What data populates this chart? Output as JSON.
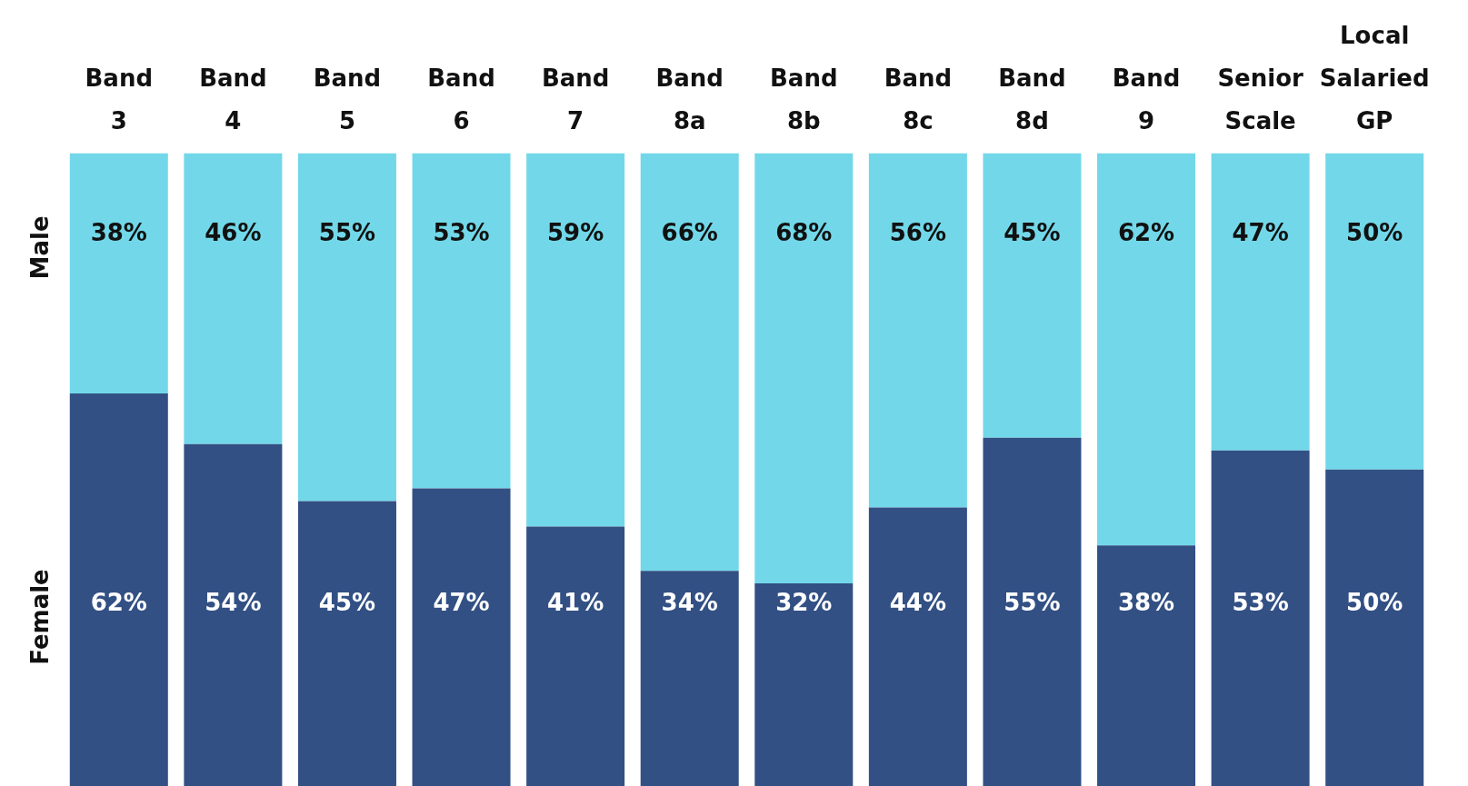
{
  "chart_data": {
    "type": "bar",
    "stacked": true,
    "legend": false,
    "grid": false,
    "categories": [
      "Band 3",
      "Band 4",
      "Band 5",
      "Band 6",
      "Band 7",
      "Band 8a",
      "Band 8b",
      "Band 8c",
      "Band 8d",
      "Band 9",
      "Senior Scale",
      "Local Salaried GP"
    ],
    "series": [
      {
        "name": "Female",
        "color": "#325084",
        "values": [
          62,
          54,
          45,
          47,
          41,
          34,
          32,
          44,
          55,
          38,
          53,
          50
        ],
        "value_labels": [
          "62%",
          "54%",
          "45%",
          "47%",
          "41%",
          "34%",
          "32%",
          "44%",
          "55%",
          "38%",
          "53%",
          "50%"
        ]
      },
      {
        "name": "Male",
        "color": "#72d8e9",
        "values": [
          38,
          46,
          55,
          53,
          59,
          66,
          68,
          56,
          45,
          62,
          47,
          50
        ],
        "value_labels": [
          "38%",
          "46%",
          "55%",
          "53%",
          "59%",
          "66%",
          "68%",
          "56%",
          "45%",
          "62%",
          "47%",
          "50%"
        ]
      }
    ]
  }
}
